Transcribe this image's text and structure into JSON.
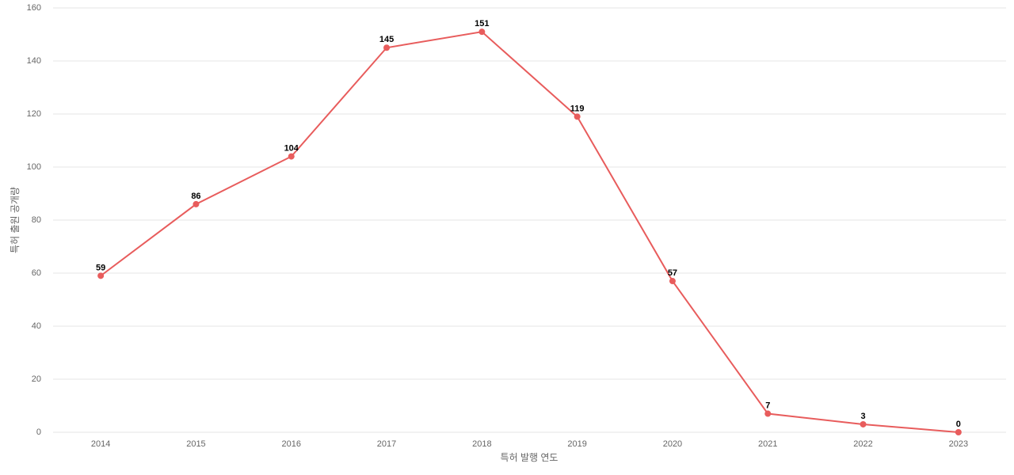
{
  "chart_data": {
    "type": "line",
    "x_label": "특허 발행 연도",
    "y_label": "특허 출원 공개량",
    "categories": [
      "2014",
      "2015",
      "2016",
      "2017",
      "2018",
      "2019",
      "2020",
      "2021",
      "2022",
      "2023"
    ],
    "values": [
      59,
      86,
      104,
      145,
      151,
      119,
      57,
      7,
      3,
      0
    ],
    "color": "#e85c5c",
    "ylim": [
      0,
      160
    ],
    "yticks": [
      0,
      20,
      40,
      60,
      80,
      100,
      120,
      140,
      160
    ],
    "grid": true
  }
}
